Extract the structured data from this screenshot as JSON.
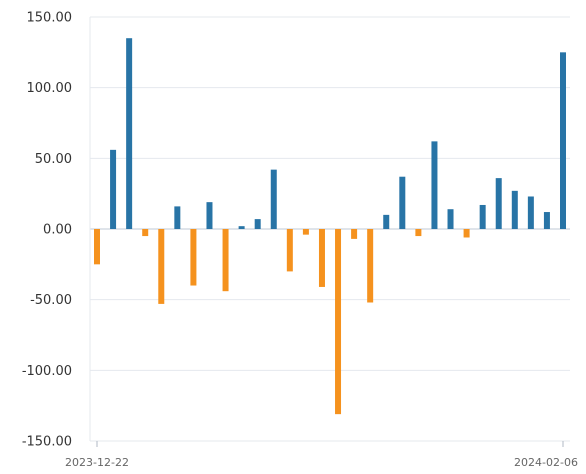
{
  "chart_data": {
    "type": "bar",
    "title": "",
    "xlabel": "",
    "ylabel": "",
    "ylim": [
      -150,
      150
    ],
    "y_ticks": [
      150,
      100,
      50,
      0,
      -50,
      -100,
      -150
    ],
    "y_tick_labels": [
      "150.00",
      "100.00",
      "50.00",
      "0.00",
      "-50.00",
      "-100.00",
      "-150.00"
    ],
    "x_tick_labels": [
      "2023-12-22",
      "2024-02-06"
    ],
    "positive_color": "#2874A6",
    "negative_color": "#F5921E",
    "grid": true,
    "values": [
      -25,
      56,
      135,
      -5,
      -53,
      16,
      -40,
      19,
      -44,
      2,
      7,
      42,
      -30,
      -4,
      -41,
      -131,
      -7,
      -52,
      10,
      37,
      -5,
      62,
      14,
      -6,
      17,
      36,
      27,
      23,
      12,
      125
    ]
  }
}
